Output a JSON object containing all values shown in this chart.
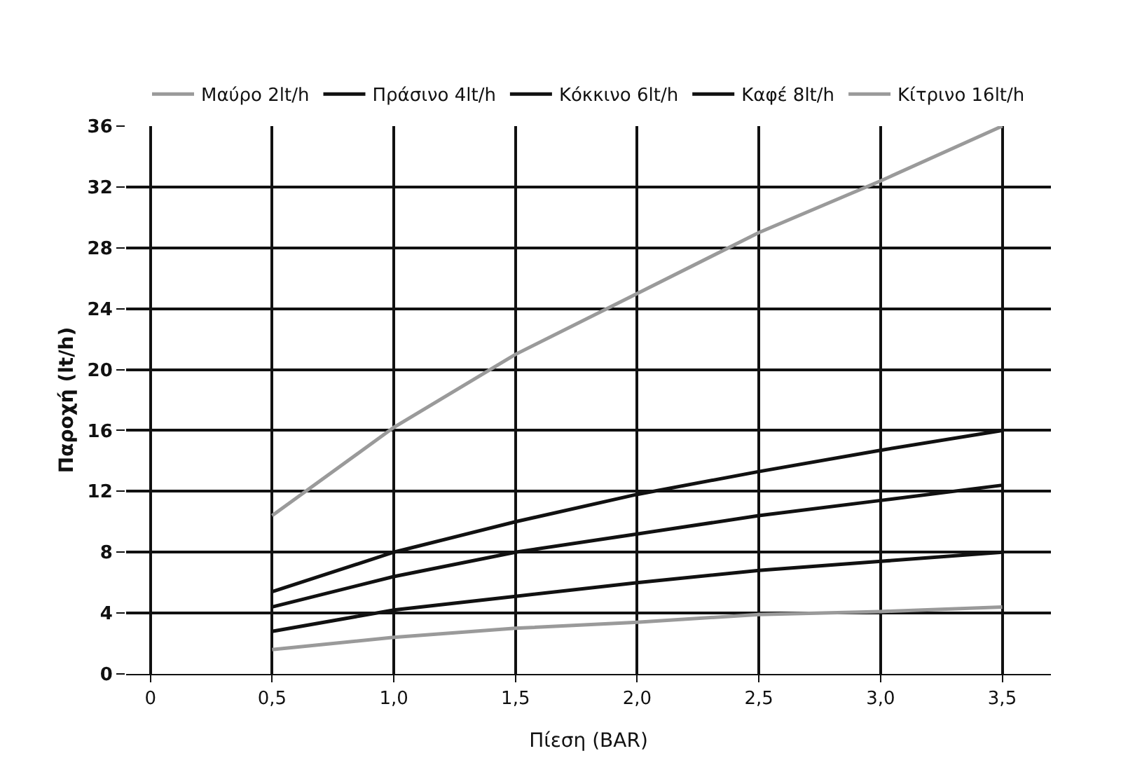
{
  "chart_data": {
    "type": "line",
    "xlabel": "Πίεση (BAR)",
    "ylabel": "Παροχή (lt/h)",
    "x": [
      0.5,
      1,
      1.5,
      2,
      2.5,
      3,
      3.5
    ],
    "series": [
      {
        "name": "Μαύρο 2lt/h",
        "color": "#9a9a9a",
        "values": [
          1.6,
          2.4,
          3,
          3.4,
          3.9,
          4.1,
          4.4
        ]
      },
      {
        "name": "Πράσινο 4lt/h",
        "color": "#111111",
        "values": [
          2.8,
          4.2,
          5.1,
          6,
          6.8,
          7.4,
          8
        ]
      },
      {
        "name": "Κόκκινο 6lt/h",
        "color": "#111111",
        "values": [
          4.4,
          6.4,
          8,
          9.2,
          10.4,
          11.4,
          12.4
        ]
      },
      {
        "name": "Καφέ 8lt/h",
        "color": "#111111",
        "values": [
          5.4,
          8,
          10,
          11.8,
          13.3,
          14.7,
          16
        ]
      },
      {
        "name": "Κίτρινο 16lt/h",
        "color": "#9a9a9a",
        "values": [
          10.4,
          16.2,
          21,
          25,
          29,
          32.4,
          36
        ]
      }
    ],
    "xlim": [
      -0.1,
      3.7
    ],
    "xticks": [
      0,
      {
        "value": 0.5,
        "label": "0,5"
      },
      {
        "value": 1,
        "label": "1,0"
      },
      {
        "value": 1.5,
        "label": "1,5"
      },
      {
        "value": 2,
        "label": "2,0"
      },
      {
        "value": 2.5,
        "label": "2,5"
      },
      {
        "value": 3,
        "label": "3,0"
      },
      {
        "value": 3.5,
        "label": "3,5"
      }
    ],
    "ylim": [
      0,
      36
    ],
    "yticks": [
      0,
      4,
      8,
      12,
      16,
      20,
      24,
      28,
      32,
      36
    ],
    "grid": true,
    "legend": "top",
    "marker": "none",
    "line_style": "solid"
  }
}
